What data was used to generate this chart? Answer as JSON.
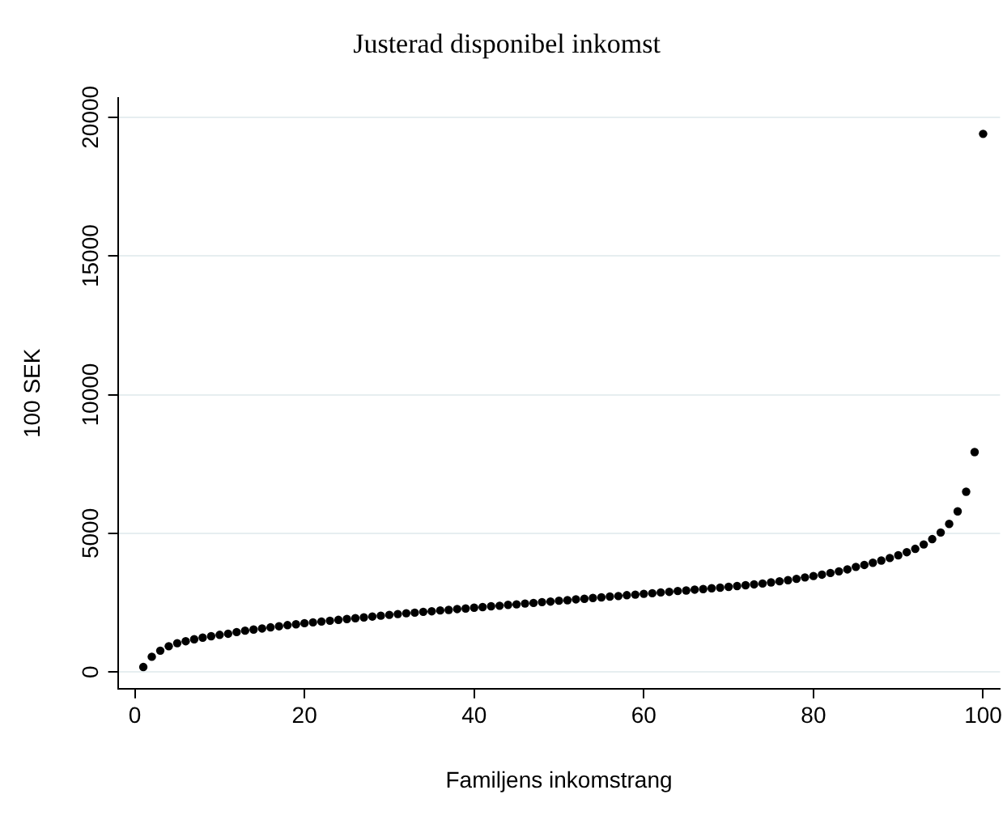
{
  "chart_data": {
    "type": "scatter",
    "title": "Justerad disponibel inkomst",
    "xlabel": "Familjens inkomstrang",
    "ylabel": "100 SEK",
    "x": [
      1,
      2,
      3,
      4,
      5,
      6,
      7,
      8,
      9,
      10,
      11,
      12,
      13,
      14,
      15,
      16,
      17,
      18,
      19,
      20,
      21,
      22,
      23,
      24,
      25,
      26,
      27,
      28,
      29,
      30,
      31,
      32,
      33,
      34,
      35,
      36,
      37,
      38,
      39,
      40,
      41,
      42,
      43,
      44,
      45,
      46,
      47,
      48,
      49,
      50,
      51,
      52,
      53,
      54,
      55,
      56,
      57,
      58,
      59,
      60,
      61,
      62,
      63,
      64,
      65,
      66,
      67,
      68,
      69,
      70,
      71,
      72,
      73,
      74,
      75,
      76,
      77,
      78,
      79,
      80,
      81,
      82,
      83,
      84,
      85,
      86,
      87,
      88,
      89,
      90,
      91,
      92,
      93,
      94,
      95,
      96,
      97,
      98,
      99,
      100
    ],
    "values": [
      180,
      550,
      770,
      930,
      1040,
      1110,
      1180,
      1240,
      1290,
      1340,
      1380,
      1440,
      1490,
      1530,
      1570,
      1610,
      1650,
      1690,
      1720,
      1760,
      1790,
      1820,
      1850,
      1880,
      1910,
      1940,
      1970,
      2000,
      2030,
      2060,
      2090,
      2120,
      2140,
      2170,
      2190,
      2220,
      2240,
      2270,
      2290,
      2320,
      2340,
      2370,
      2390,
      2420,
      2440,
      2470,
      2490,
      2520,
      2540,
      2570,
      2590,
      2620,
      2640,
      2670,
      2690,
      2720,
      2740,
      2770,
      2790,
      2820,
      2840,
      2870,
      2890,
      2920,
      2940,
      2970,
      2990,
      3020,
      3040,
      3070,
      3100,
      3130,
      3160,
      3190,
      3230,
      3270,
      3310,
      3360,
      3410,
      3460,
      3510,
      3570,
      3630,
      3700,
      3790,
      3860,
      3940,
      4020,
      4110,
      4210,
      4320,
      4440,
      4600,
      4790,
      5030,
      5340,
      5790,
      6500,
      7930,
      19400
    ],
    "color": "#000000",
    "marker": "circle",
    "xlim": [
      -2,
      102
    ],
    "xticks": [
      0,
      20,
      40,
      60,
      80,
      100
    ],
    "ylim": [
      -600,
      20700
    ],
    "yticks": [
      0,
      5000,
      10000,
      15000,
      20000
    ],
    "grid": "y",
    "legend": false
  }
}
